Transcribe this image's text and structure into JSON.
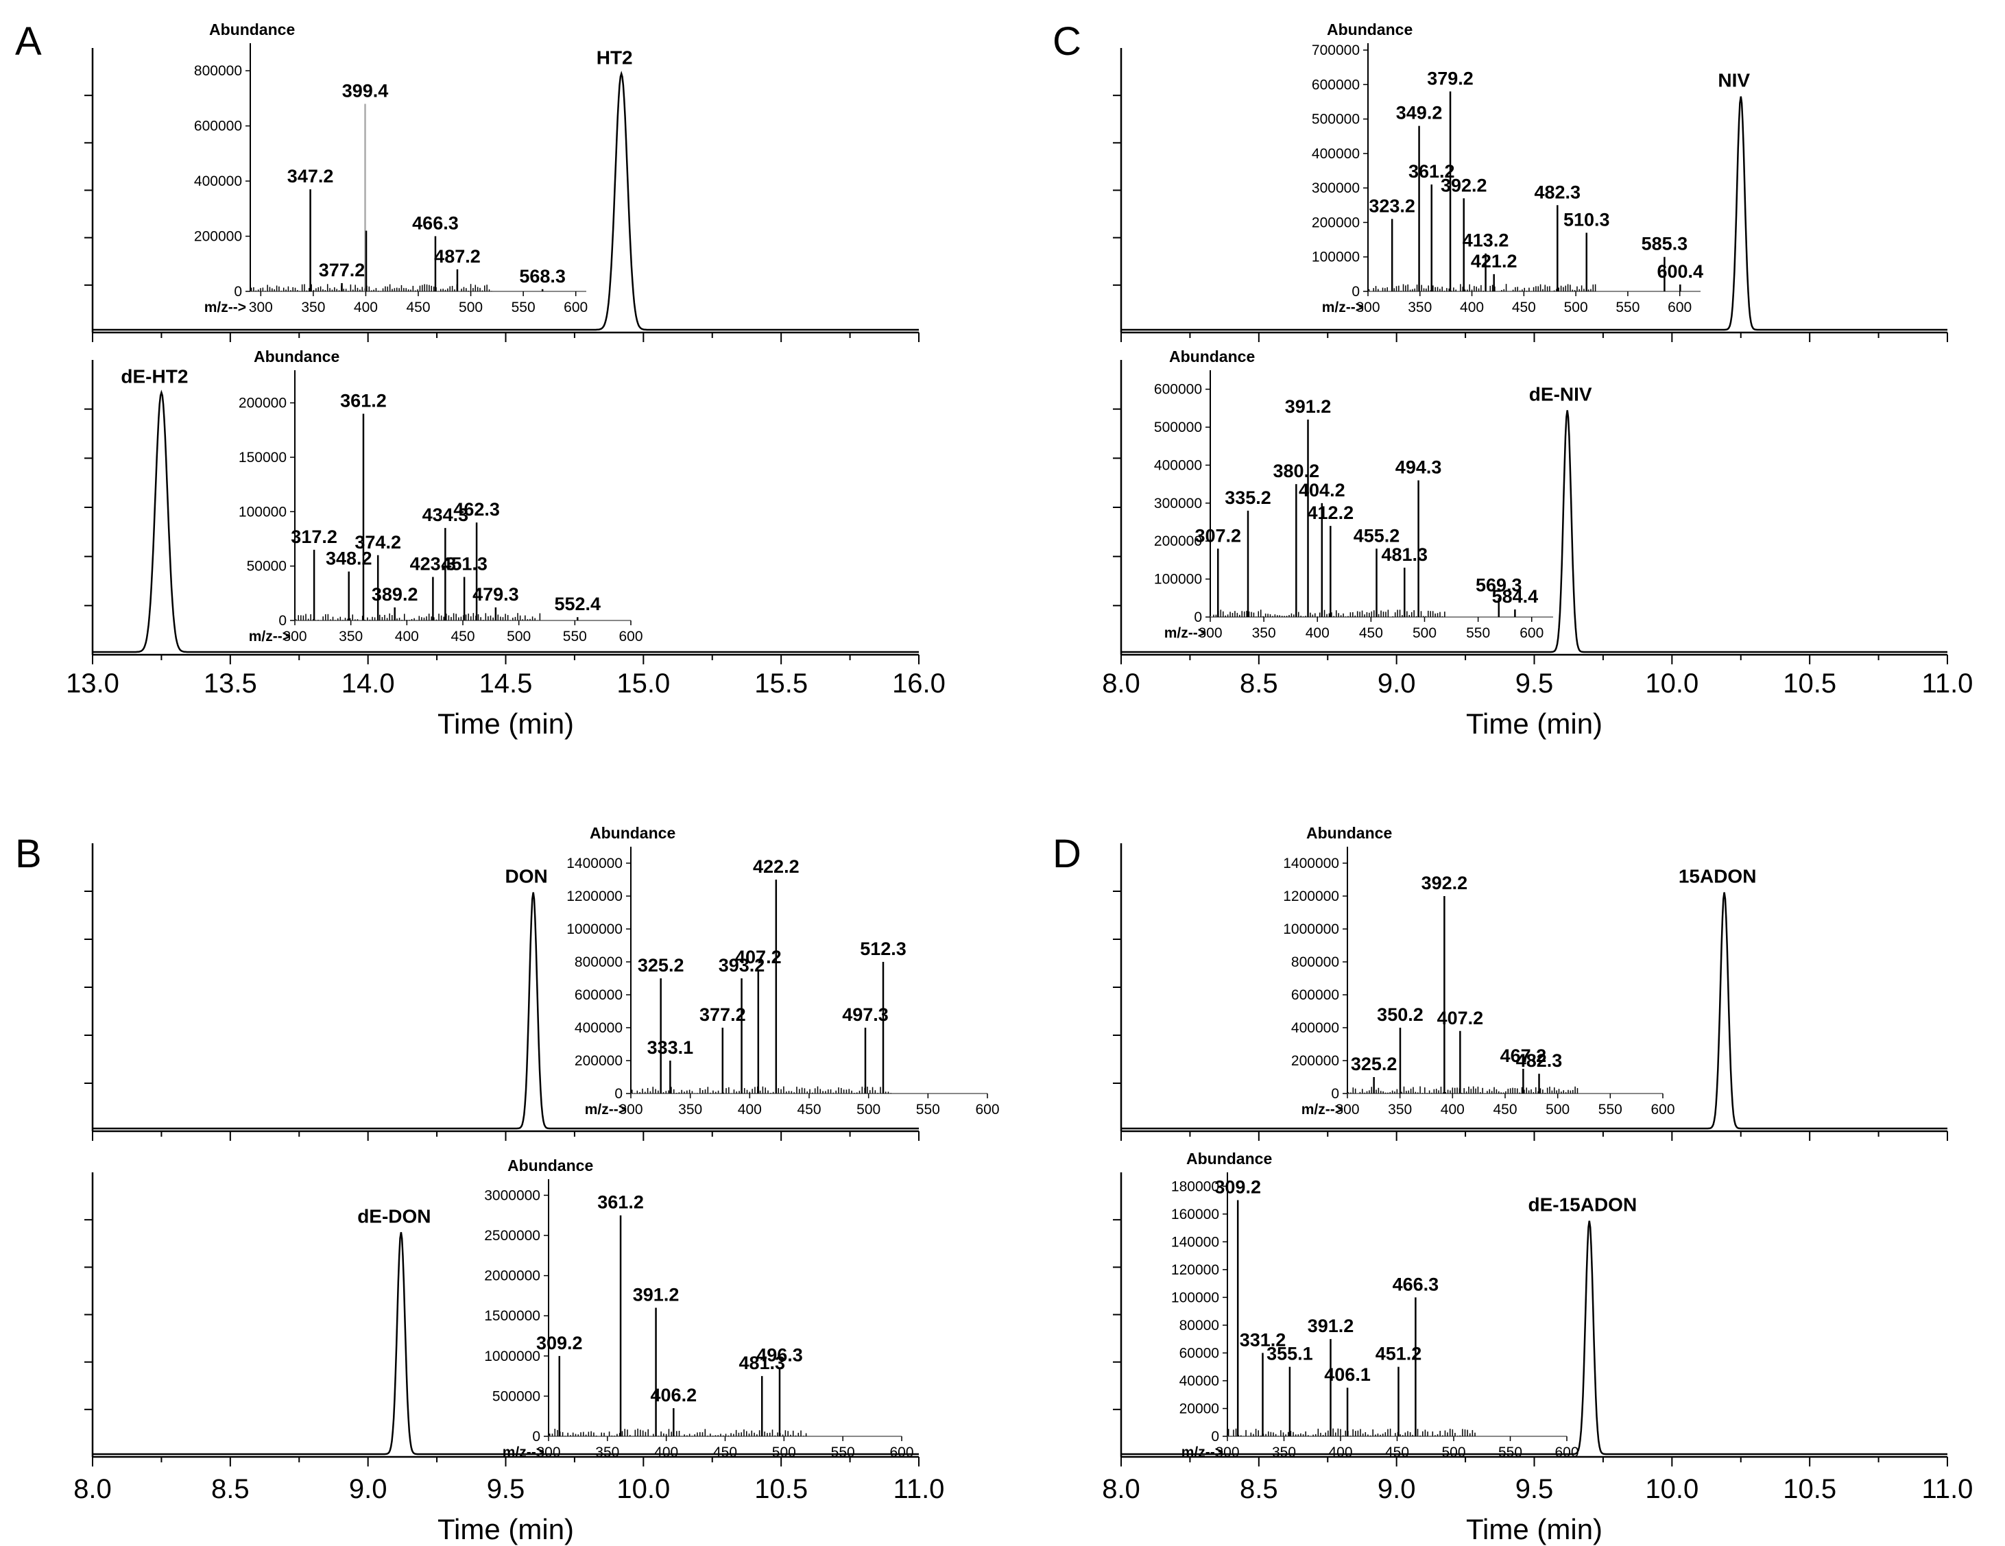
{
  "chart_data": [
    {
      "panel": "A",
      "type": "line",
      "xlabel": "Time (min)",
      "xlim": [
        13.0,
        16.0
      ],
      "xticks": [
        "13.0",
        "13.5",
        "14.0",
        "14.5",
        "15.0",
        "15.5",
        "16.0"
      ],
      "traces": [
        {
          "name": "HT2",
          "peaks": [
            {
              "label": "HT2",
              "time": 14.92,
              "rel_height": 0.9,
              "width": 0.022
            }
          ],
          "inset": {
            "ylabel": "Abundance",
            "xlabel": "m/z-->",
            "xlim": [
              290,
              610
            ],
            "ylim": [
              0,
              900000
            ],
            "yticks": [
              0,
              200000,
              400000,
              600000,
              800000
            ],
            "xticks": [
              300,
              350,
              400,
              450,
              500,
              550,
              600
            ],
            "ions": [
              {
                "mz": 347.2,
                "abundance": 370000,
                "label": "347.2"
              },
              {
                "mz": 377.2,
                "abundance": 30000,
                "label": "377.2"
              },
              {
                "mz": 399.4,
                "abundance": 680000,
                "label": "399.4",
                "gray": true
              },
              {
                "mz": 400.4,
                "abundance": 220000
              },
              {
                "mz": 466.3,
                "abundance": 200000,
                "label": "466.3"
              },
              {
                "mz": 487.2,
                "abundance": 80000,
                "label": "487.2"
              },
              {
                "mz": 568.3,
                "abundance": 8000,
                "label": "568.3"
              }
            ]
          }
        },
        {
          "name": "dE-HT2",
          "peaks": [
            {
              "label": "dE-HT2",
              "time": 13.25,
              "rel_height": 0.88,
              "width": 0.022
            }
          ],
          "inset": {
            "ylabel": "Abundance",
            "xlabel": "m/z-->",
            "xlim": [
              300,
              600
            ],
            "ylim": [
              0,
              230000
            ],
            "yticks": [
              0,
              50000,
              100000,
              150000,
              200000
            ],
            "xticks": [
              300,
              350,
              400,
              450,
              500,
              550,
              600
            ],
            "ions": [
              {
                "mz": 317.2,
                "abundance": 65000,
                "label": "317.2"
              },
              {
                "mz": 348.2,
                "abundance": 45000,
                "label": "348.2"
              },
              {
                "mz": 361.2,
                "abundance": 190000,
                "label": "361.2"
              },
              {
                "mz": 374.2,
                "abundance": 60000,
                "label": "374.2"
              },
              {
                "mz": 389.2,
                "abundance": 12000,
                "label": "389.2"
              },
              {
                "mz": 423.3,
                "abundance": 40000,
                "label": "423.3"
              },
              {
                "mz": 434.3,
                "abundance": 85000,
                "label": "434.3"
              },
              {
                "mz": 451.3,
                "abundance": 40000,
                "label": "451.3"
              },
              {
                "mz": 462.3,
                "abundance": 90000,
                "label": "462.3"
              },
              {
                "mz": 479.3,
                "abundance": 12000,
                "label": "479.3"
              },
              {
                "mz": 552.4,
                "abundance": 3000,
                "label": "552.4"
              }
            ]
          }
        }
      ]
    },
    {
      "panel": "B",
      "type": "line",
      "xlabel": "Time (min)",
      "xlim": [
        8.0,
        11.0
      ],
      "xticks": [
        "8.0",
        "8.5",
        "9.0",
        "9.5",
        "10.0",
        "10.5",
        "11.0"
      ],
      "traces": [
        {
          "name": "DON",
          "peaks": [
            {
              "label": "DON",
              "time": 9.6,
              "rel_height": 0.82,
              "width": 0.014
            }
          ],
          "inset": {
            "ylabel": "Abundance",
            "xlabel": "m/z-->",
            "xlim": [
              300,
              600
            ],
            "ylim": [
              0,
              1500000
            ],
            "yticks": [
              0,
              200000,
              400000,
              600000,
              800000,
              1000000,
              1200000,
              1400000
            ],
            "xticks": [
              300,
              350,
              400,
              450,
              500,
              550,
              600
            ],
            "ions": [
              {
                "mz": 325.2,
                "abundance": 700000,
                "label": "325.2"
              },
              {
                "mz": 333.1,
                "abundance": 200000,
                "label": "333.1"
              },
              {
                "mz": 377.2,
                "abundance": 400000,
                "label": "377.2"
              },
              {
                "mz": 393.2,
                "abundance": 700000,
                "label": "393.2"
              },
              {
                "mz": 407.2,
                "abundance": 750000,
                "label": "407.2"
              },
              {
                "mz": 422.2,
                "abundance": 1300000,
                "label": "422.2"
              },
              {
                "mz": 497.3,
                "abundance": 400000,
                "label": "497.3"
              },
              {
                "mz": 512.3,
                "abundance": 800000,
                "label": "512.3"
              }
            ]
          }
        },
        {
          "name": "dE-DON",
          "peaks": [
            {
              "label": "dE-DON",
              "time": 9.12,
              "rel_height": 0.78,
              "width": 0.014
            }
          ],
          "inset": {
            "ylabel": "Abundance",
            "xlabel": "m/z-->",
            "xlim": [
              300,
              600
            ],
            "ylim": [
              0,
              3200000
            ],
            "yticks": [
              0,
              500000,
              1000000,
              1500000,
              2000000,
              2500000,
              3000000
            ],
            "xticks": [
              300,
              350,
              400,
              450,
              500,
              550,
              600
            ],
            "ions": [
              {
                "mz": 309.2,
                "abundance": 1000000,
                "label": "309.2"
              },
              {
                "mz": 361.2,
                "abundance": 2750000,
                "label": "361.2"
              },
              {
                "mz": 391.2,
                "abundance": 1600000,
                "label": "391.2"
              },
              {
                "mz": 406.2,
                "abundance": 350000,
                "label": "406.2"
              },
              {
                "mz": 481.3,
                "abundance": 750000,
                "label": "481.3"
              },
              {
                "mz": 496.3,
                "abundance": 850000,
                "label": "496.3"
              }
            ]
          }
        }
      ]
    },
    {
      "panel": "C",
      "type": "line",
      "xlabel": "Time (min)",
      "xlim": [
        8.0,
        11.0
      ],
      "xticks": [
        "8.0",
        "8.5",
        "9.0",
        "9.5",
        "10.0",
        "10.5",
        "11.0"
      ],
      "traces": [
        {
          "name": "NIV",
          "peaks": [
            {
              "label": "NIV",
              "time": 10.25,
              "rel_height": 0.82,
              "width": 0.014
            }
          ],
          "inset": {
            "ylabel": "Abundance",
            "xlabel": "m/z-->",
            "xlim": [
              300,
              620
            ],
            "ylim": [
              0,
              720000
            ],
            "yticks": [
              0,
              100000,
              200000,
              300000,
              400000,
              500000,
              600000,
              700000
            ],
            "xticks": [
              300,
              350,
              400,
              450,
              500,
              550,
              600
            ],
            "ions": [
              {
                "mz": 323.2,
                "abundance": 210000,
                "label": "323.2"
              },
              {
                "mz": 349.2,
                "abundance": 480000,
                "label": "349.2"
              },
              {
                "mz": 361.2,
                "abundance": 310000,
                "label": "361.2"
              },
              {
                "mz": 379.2,
                "abundance": 580000,
                "label": "379.2"
              },
              {
                "mz": 392.2,
                "abundance": 270000,
                "label": "392.2"
              },
              {
                "mz": 413.2,
                "abundance": 110000,
                "label": "413.2"
              },
              {
                "mz": 421.2,
                "abundance": 50000,
                "label": "421.2"
              },
              {
                "mz": 482.3,
                "abundance": 250000,
                "label": "482.3"
              },
              {
                "mz": 510.3,
                "abundance": 170000,
                "label": "510.3"
              },
              {
                "mz": 585.3,
                "abundance": 100000,
                "label": "585.3"
              },
              {
                "mz": 600.4,
                "abundance": 20000,
                "label": "600.4"
              }
            ]
          }
        },
        {
          "name": "dE-NIV",
          "peaks": [
            {
              "label": "dE-NIV",
              "time": 9.62,
              "rel_height": 0.82,
              "width": 0.014
            }
          ],
          "inset": {
            "ylabel": "Abundance",
            "xlabel": "m/z-->",
            "xlim": [
              300,
              620
            ],
            "ylim": [
              0,
              650000
            ],
            "yticks": [
              0,
              100000,
              200000,
              300000,
              400000,
              500000,
              600000
            ],
            "xticks": [
              300,
              350,
              400,
              450,
              500,
              550,
              600
            ],
            "ions": [
              {
                "mz": 307.2,
                "abundance": 180000,
                "label": "307.2"
              },
              {
                "mz": 335.2,
                "abundance": 280000,
                "label": "335.2"
              },
              {
                "mz": 380.2,
                "abundance": 350000,
                "label": "380.2"
              },
              {
                "mz": 391.2,
                "abundance": 520000,
                "label": "391.2"
              },
              {
                "mz": 404.2,
                "abundance": 300000,
                "label": "404.2"
              },
              {
                "mz": 412.2,
                "abundance": 240000,
                "label": "412.2"
              },
              {
                "mz": 455.2,
                "abundance": 180000,
                "label": "455.2"
              },
              {
                "mz": 481.3,
                "abundance": 130000,
                "label": "481.3"
              },
              {
                "mz": 494.3,
                "abundance": 360000,
                "label": "494.3"
              },
              {
                "mz": 569.3,
                "abundance": 50000,
                "label": "569.3"
              },
              {
                "mz": 584.4,
                "abundance": 20000,
                "label": "584.4"
              }
            ]
          }
        }
      ]
    },
    {
      "panel": "D",
      "type": "line",
      "xlabel": "Time (min)",
      "xlim": [
        8.0,
        11.0
      ],
      "xticks": [
        "8.0",
        "8.5",
        "9.0",
        "9.5",
        "10.0",
        "10.5",
        "11.0"
      ],
      "traces": [
        {
          "name": "15ADON",
          "peaks": [
            {
              "label": "15ADON",
              "time": 10.19,
              "rel_height": 0.82,
              "width": 0.014
            }
          ],
          "inset": {
            "ylabel": "Abundance",
            "xlabel": "m/z-->",
            "xlim": [
              300,
              600
            ],
            "ylim": [
              0,
              1500000
            ],
            "yticks": [
              0,
              200000,
              400000,
              600000,
              800000,
              1000000,
              1200000,
              1400000
            ],
            "xticks": [
              300,
              350,
              400,
              450,
              500,
              550,
              600
            ],
            "ions": [
              {
                "mz": 325.2,
                "abundance": 100000,
                "label": "325.2"
              },
              {
                "mz": 350.2,
                "abundance": 400000,
                "label": "350.2"
              },
              {
                "mz": 392.2,
                "abundance": 1200000,
                "label": "392.2"
              },
              {
                "mz": 407.2,
                "abundance": 380000,
                "label": "407.2"
              },
              {
                "mz": 467.2,
                "abundance": 150000,
                "label": "467.2"
              },
              {
                "mz": 482.3,
                "abundance": 120000,
                "label": "482.3"
              }
            ]
          }
        },
        {
          "name": "dE-15ADON",
          "peaks": [
            {
              "label": "dE-15ADON",
              "time": 9.7,
              "rel_height": 0.82,
              "width": 0.014
            }
          ],
          "inset": {
            "ylabel": "Abundance",
            "xlabel": "m/z-->",
            "xlim": [
              300,
              600
            ],
            "ylim": [
              0,
              190000
            ],
            "yticks": [
              0,
              20000,
              40000,
              60000,
              80000,
              100000,
              120000,
              140000,
              160000,
              180000
            ],
            "xticks": [
              300,
              350,
              400,
              450,
              500,
              550,
              600
            ],
            "ions": [
              {
                "mz": 309.2,
                "abundance": 170000,
                "label": "309.2"
              },
              {
                "mz": 331.2,
                "abundance": 60000,
                "label": "331.2"
              },
              {
                "mz": 355.1,
                "abundance": 50000,
                "label": "355.1"
              },
              {
                "mz": 391.2,
                "abundance": 70000,
                "label": "391.2"
              },
              {
                "mz": 406.1,
                "abundance": 35000,
                "label": "406.1"
              },
              {
                "mz": 451.2,
                "abundance": 50000,
                "label": "451.2"
              },
              {
                "mz": 466.3,
                "abundance": 100000,
                "label": "466.3"
              }
            ]
          }
        }
      ]
    }
  ]
}
